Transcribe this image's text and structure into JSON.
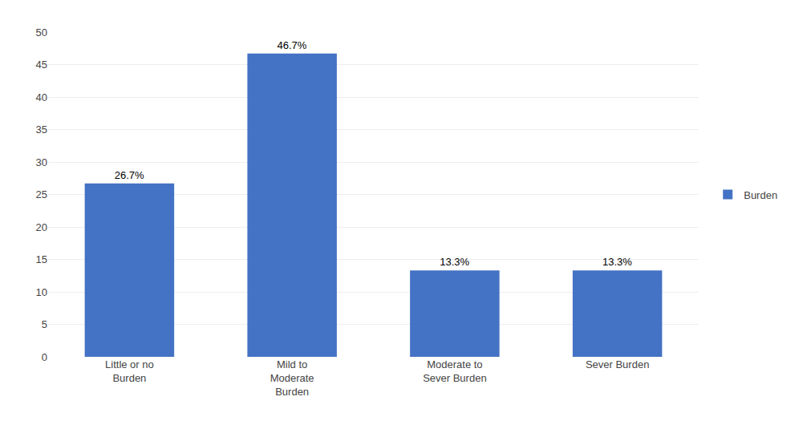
{
  "chart_data": {
    "type": "bar",
    "categories": [
      "Little or no\nBurden",
      "Mild to\nModerate\nBurden",
      "Moderate to\nSever Burden",
      "Sever Burden"
    ],
    "series": [
      {
        "name": "Burden",
        "color": "#4472C4",
        "values": [
          26.7,
          46.7,
          13.3,
          13.3
        ],
        "value_labels": [
          "26.7%",
          "46.7%",
          "13.3%",
          "13.3%"
        ]
      }
    ],
    "ylim": [
      0,
      50
    ],
    "yticks": [
      0,
      5,
      10,
      15,
      20,
      25,
      30,
      35,
      40,
      45,
      50
    ],
    "grid": true,
    "legend": "right",
    "data_labels": true
  }
}
